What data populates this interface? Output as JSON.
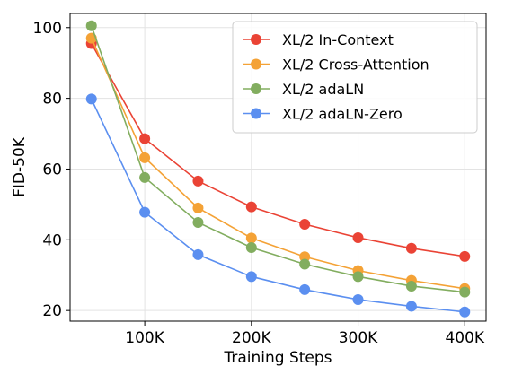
{
  "chart_data": {
    "type": "line",
    "xlabel": "Training Steps",
    "ylabel": "FID-50K",
    "x": [
      50000,
      100000,
      150000,
      200000,
      250000,
      300000,
      350000,
      400000
    ],
    "xticks": [
      100000,
      200000,
      300000,
      400000
    ],
    "xtick_labels": [
      "100K",
      "200K",
      "300K",
      "400K"
    ],
    "yticks": [
      20,
      40,
      60,
      80,
      100
    ],
    "yticks_labels": [
      "20",
      "40",
      "60",
      "80",
      "100"
    ],
    "xlim": [
      30000,
      420000
    ],
    "ylim": [
      17,
      104
    ],
    "grid": true,
    "legend_position": "top-right",
    "series": [
      {
        "name": "XL/2 In-Context",
        "color": "#ea4335",
        "values": [
          95.5,
          68.6,
          56.6,
          49.3,
          44.4,
          40.6,
          37.6,
          35.3
        ]
      },
      {
        "name": "XL/2 Cross-Attention",
        "color": "#f4a236",
        "values": [
          97.0,
          63.2,
          49.0,
          40.5,
          35.2,
          31.3,
          28.5,
          26.2
        ]
      },
      {
        "name": "XL/2 adaLN",
        "color": "#82ad5f",
        "values": [
          100.5,
          57.6,
          44.9,
          37.8,
          33.1,
          29.6,
          26.9,
          25.2
        ]
      },
      {
        "name": "XL/2 adaLN-Zero",
        "color": "#5b8ff0",
        "values": [
          79.8,
          47.8,
          35.8,
          29.6,
          25.9,
          23.1,
          21.2,
          19.6
        ]
      }
    ]
  }
}
